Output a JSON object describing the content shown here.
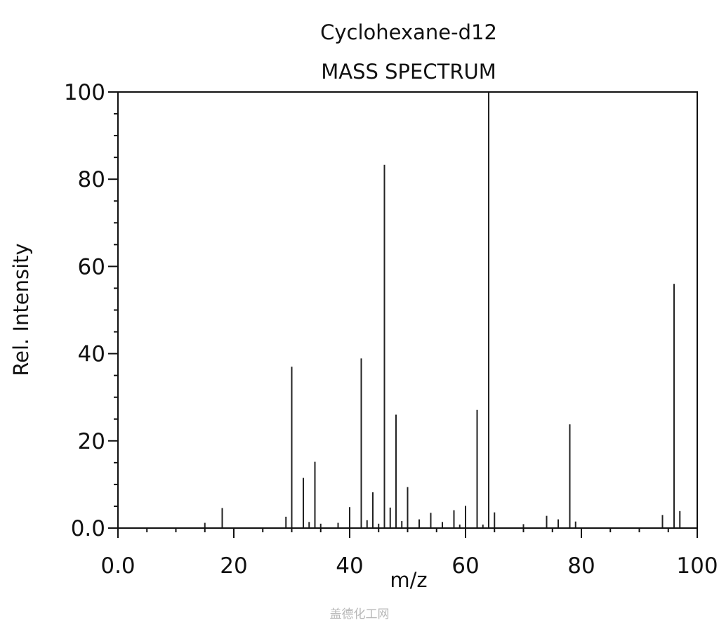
{
  "chart_data": {
    "type": "bar",
    "title": "Cyclohexane-d12",
    "subtitle": "MASS SPECTRUM",
    "xlabel": "m/z",
    "ylabel": "Rel. Intensity",
    "xlim": [
      0,
      100
    ],
    "ylim": [
      0,
      100
    ],
    "x_ticks": [
      "0.0",
      "20",
      "40",
      "60",
      "80",
      "100"
    ],
    "y_ticks": [
      "0.0",
      "20",
      "40",
      "60",
      "80",
      "100"
    ],
    "grid": false,
    "peaks": [
      {
        "mz": 15,
        "intensity": 1.2
      },
      {
        "mz": 18,
        "intensity": 4.6
      },
      {
        "mz": 29,
        "intensity": 2.6
      },
      {
        "mz": 30,
        "intensity": 37
      },
      {
        "mz": 32,
        "intensity": 11.5
      },
      {
        "mz": 33,
        "intensity": 1.4
      },
      {
        "mz": 34,
        "intensity": 15.2
      },
      {
        "mz": 35,
        "intensity": 1.0
      },
      {
        "mz": 38,
        "intensity": 1.2
      },
      {
        "mz": 40,
        "intensity": 4.8
      },
      {
        "mz": 42,
        "intensity": 38.9
      },
      {
        "mz": 43,
        "intensity": 1.8
      },
      {
        "mz": 44,
        "intensity": 8.2
      },
      {
        "mz": 45,
        "intensity": 1.0
      },
      {
        "mz": 46,
        "intensity": 83.3
      },
      {
        "mz": 47,
        "intensity": 4.7
      },
      {
        "mz": 48,
        "intensity": 26
      },
      {
        "mz": 49,
        "intensity": 1.6
      },
      {
        "mz": 50,
        "intensity": 9.4
      },
      {
        "mz": 52,
        "intensity": 2.0
      },
      {
        "mz": 54,
        "intensity": 3.5
      },
      {
        "mz": 56,
        "intensity": 1.4
      },
      {
        "mz": 58,
        "intensity": 4.1
      },
      {
        "mz": 59,
        "intensity": 0.8
      },
      {
        "mz": 60,
        "intensity": 5.1
      },
      {
        "mz": 62,
        "intensity": 27.1
      },
      {
        "mz": 63,
        "intensity": 0.8
      },
      {
        "mz": 64,
        "intensity": 100
      },
      {
        "mz": 65,
        "intensity": 3.6
      },
      {
        "mz": 70,
        "intensity": 0.9
      },
      {
        "mz": 74,
        "intensity": 2.8
      },
      {
        "mz": 76,
        "intensity": 2.0
      },
      {
        "mz": 78,
        "intensity": 23.8
      },
      {
        "mz": 79,
        "intensity": 1.5
      },
      {
        "mz": 94,
        "intensity": 3.0
      },
      {
        "mz": 96,
        "intensity": 56
      },
      {
        "mz": 97,
        "intensity": 3.9
      }
    ]
  },
  "watermark": "盖德化工网"
}
